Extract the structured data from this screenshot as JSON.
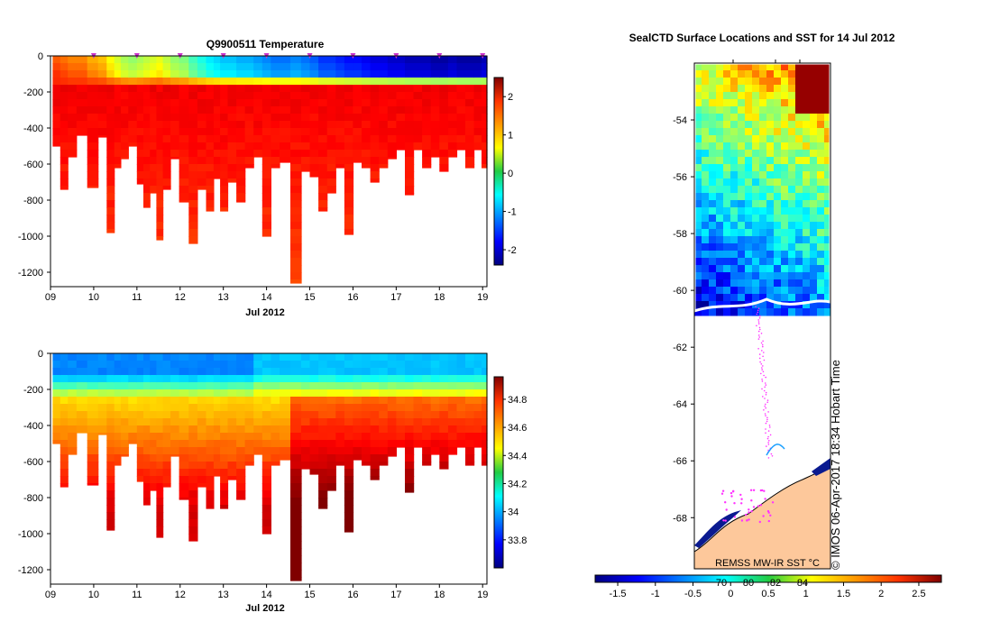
{
  "chart_data": [
    {
      "type": "heatmap",
      "title": "Q9900511  Temperature",
      "xlabel": "Jul 2012",
      "x_ticks": [
        "09",
        "10",
        "11",
        "12",
        "13",
        "14",
        "15",
        "16",
        "17",
        "18",
        "19"
      ],
      "xlim": [
        9,
        19.1
      ],
      "ylabel": "",
      "y_ticks": [
        0,
        -200,
        -400,
        -600,
        -800,
        -1000,
        -1200
      ],
      "ylim": [
        -1280,
        0
      ],
      "colorbar_ticks": [
        2,
        1,
        0,
        -1,
        -2
      ],
      "colorbar_range": [
        -2.4,
        2.5
      ],
      "marker_days": [
        10,
        11,
        12,
        13,
        14,
        15,
        16,
        17,
        18,
        19
      ],
      "profiles": [
        {
          "day": 9.15,
          "surface": 1.4,
          "depth": 500
        },
        {
          "day": 9.3,
          "surface": 1.3,
          "depth": 740
        },
        {
          "day": 9.5,
          "surface": 1.2,
          "depth": 560
        },
        {
          "day": 9.7,
          "surface": 1.2,
          "depth": 440
        },
        {
          "day": 10.0,
          "surface": 1.0,
          "depth": 730
        },
        {
          "day": 10.2,
          "surface": 0.9,
          "depth": 450
        },
        {
          "day": 10.4,
          "surface": 0.6,
          "depth": 980
        },
        {
          "day": 10.55,
          "surface": 0.4,
          "depth": 620
        },
        {
          "day": 10.7,
          "surface": 0.2,
          "depth": 570
        },
        {
          "day": 10.9,
          "surface": 0.1,
          "depth": 500
        },
        {
          "day": 11.1,
          "surface": 0.2,
          "depth": 710
        },
        {
          "day": 11.2,
          "surface": 0.3,
          "depth": 840
        },
        {
          "day": 11.4,
          "surface": 0.4,
          "depth": 760
        },
        {
          "day": 11.5,
          "surface": 0.5,
          "depth": 1020
        },
        {
          "day": 11.7,
          "surface": 0.3,
          "depth": 740
        },
        {
          "day": 11.85,
          "surface": 0.1,
          "depth": 570
        },
        {
          "day": 12.1,
          "surface": 0.0,
          "depth": 810
        },
        {
          "day": 12.3,
          "surface": -0.3,
          "depth": 1040
        },
        {
          "day": 12.5,
          "surface": -0.5,
          "depth": 740
        },
        {
          "day": 12.7,
          "surface": -0.7,
          "depth": 860
        },
        {
          "day": 12.85,
          "surface": -0.8,
          "depth": 680
        },
        {
          "day": 13.0,
          "surface": -0.9,
          "depth": 860
        },
        {
          "day": 13.2,
          "surface": -0.9,
          "depth": 700
        },
        {
          "day": 13.4,
          "surface": -1.0,
          "depth": 810
        },
        {
          "day": 13.6,
          "surface": -1.0,
          "depth": 620
        },
        {
          "day": 13.8,
          "surface": -1.1,
          "depth": 560
        },
        {
          "day": 14.0,
          "surface": -1.2,
          "depth": 1000
        },
        {
          "day": 14.2,
          "surface": -1.3,
          "depth": 620
        },
        {
          "day": 14.4,
          "surface": -1.3,
          "depth": 590
        },
        {
          "day": 14.7,
          "surface": -1.2,
          "depth": 1260
        },
        {
          "day": 14.9,
          "surface": -1.3,
          "depth": 640
        },
        {
          "day": 15.1,
          "surface": -1.4,
          "depth": 670
        },
        {
          "day": 15.3,
          "surface": -1.6,
          "depth": 860
        },
        {
          "day": 15.5,
          "surface": -1.6,
          "depth": 760
        },
        {
          "day": 15.7,
          "surface": -1.7,
          "depth": 620
        },
        {
          "day": 15.9,
          "surface": -1.8,
          "depth": 990
        },
        {
          "day": 16.1,
          "surface": -1.8,
          "depth": 590
        },
        {
          "day": 16.3,
          "surface": -1.9,
          "depth": 620
        },
        {
          "day": 16.5,
          "surface": -2.0,
          "depth": 700
        },
        {
          "day": 16.7,
          "surface": -2.0,
          "depth": 620
        },
        {
          "day": 16.9,
          "surface": -2.1,
          "depth": 570
        },
        {
          "day": 17.1,
          "surface": -2.1,
          "depth": 520
        },
        {
          "day": 17.3,
          "surface": -2.2,
          "depth": 770
        },
        {
          "day": 17.5,
          "surface": -2.2,
          "depth": 520
        },
        {
          "day": 17.7,
          "surface": -2.2,
          "depth": 620
        },
        {
          "day": 17.9,
          "surface": -2.3,
          "depth": 560
        },
        {
          "day": 18.1,
          "surface": -2.3,
          "depth": 640
        },
        {
          "day": 18.3,
          "surface": -2.2,
          "depth": 560
        },
        {
          "day": 18.5,
          "surface": -2.3,
          "depth": 520
        },
        {
          "day": 18.7,
          "surface": -2.3,
          "depth": 620
        },
        {
          "day": 18.9,
          "surface": -2.3,
          "depth": 520
        },
        {
          "day": 19.05,
          "surface": -2.2,
          "depth": 620
        }
      ]
    },
    {
      "type": "heatmap",
      "title": "",
      "xlabel": "Jul 2012",
      "x_ticks": [
        "09",
        "10",
        "11",
        "12",
        "13",
        "14",
        "15",
        "16",
        "17",
        "18",
        "19"
      ],
      "xlim": [
        9,
        19.1
      ],
      "y_ticks": [
        0,
        -200,
        -400,
        -600,
        -800,
        -1000,
        -1200
      ],
      "ylim": [
        -1280,
        0
      ],
      "colorbar_ticks": [
        34.8,
        34.6,
        34.4,
        34.2,
        34,
        33.8
      ],
      "colorbar_range": [
        33.6,
        34.96
      ]
    },
    {
      "type": "heatmap",
      "title": "SealCTD Surface Locations and SST for 14 Jul 2012",
      "y_ticks": [
        -54,
        -56,
        -58,
        -60,
        -62,
        -64,
        -66,
        -68
      ],
      "ylim": [
        -69.8,
        -52.0
      ],
      "colorbar_ticks": [
        "-1.5",
        "-1",
        "-0.5",
        "0",
        "0.5",
        "1",
        "1.5",
        "2",
        "2.5"
      ],
      "colorbar_range": [
        -1.8,
        2.8
      ],
      "colorbar_inline_labels": [
        "70",
        "80",
        "82",
        "84"
      ],
      "source_label": "REMSS MW-IR SST °C",
      "stamp": "© IMOS 06-Apr-2017 18:34 Hobart Time"
    }
  ]
}
